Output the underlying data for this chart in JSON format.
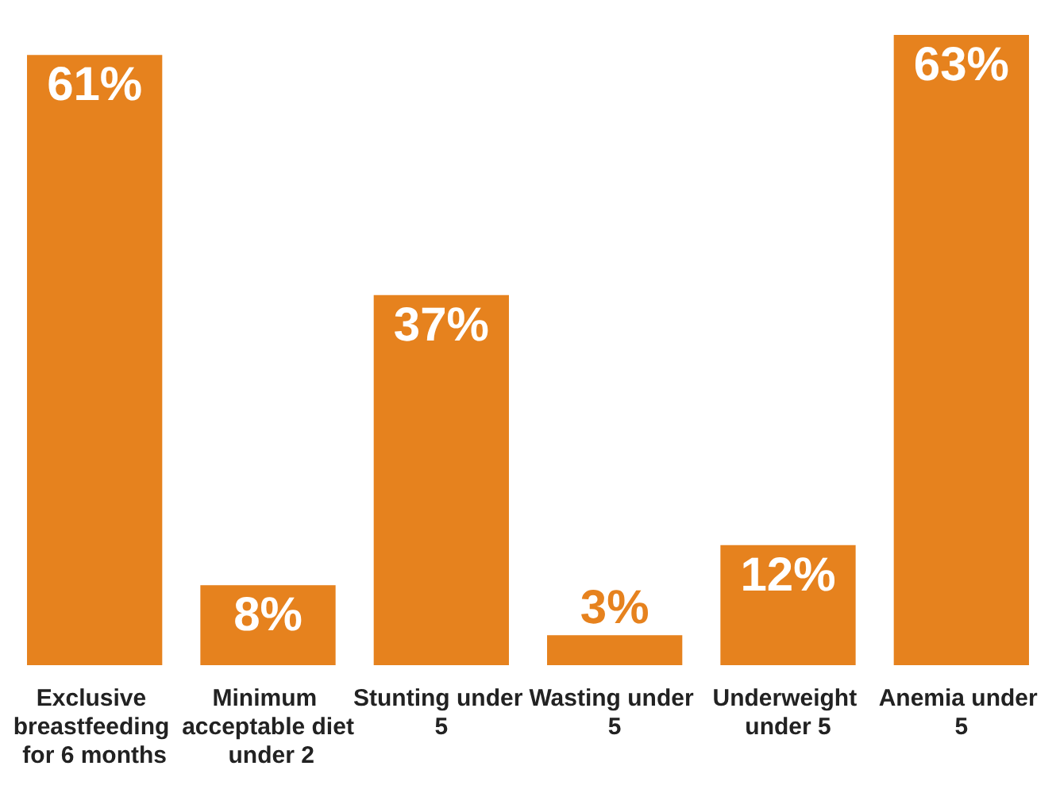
{
  "chart_data": {
    "type": "bar",
    "categories": [
      "Exclusive breastfeeding for 6 months",
      "Minimum acceptable diet under 2",
      "Stunting under 5",
      "Wasting under 5",
      "Underweight under 5",
      "Anemia under 5"
    ],
    "values": [
      61,
      8,
      37,
      3,
      12,
      63
    ],
    "value_labels": [
      "61%",
      "8%",
      "37%",
      "3%",
      "12%",
      "63%"
    ],
    "color": "#e6821e"
  }
}
